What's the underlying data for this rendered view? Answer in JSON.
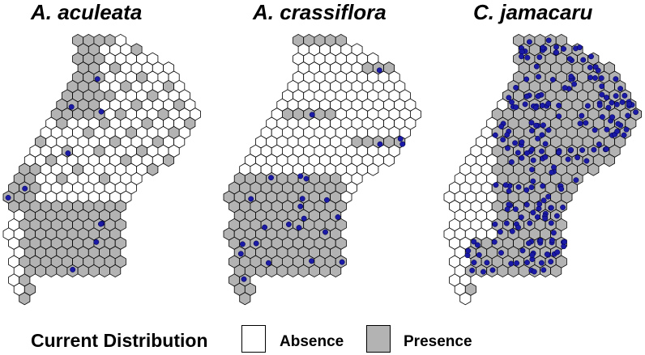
{
  "panels": [
    {
      "title": "A. aculeata"
    },
    {
      "title": "A. crassiflora"
    },
    {
      "title": "C. jamacaru"
    }
  ],
  "legend": {
    "title": "Current Distribution",
    "absence_label": "Absence",
    "presence_label": "Presence"
  },
  "colors": {
    "absence": "#ffffff",
    "presence": "#b3b3b3",
    "occurrence": "#1a1aa6",
    "outline": "#000000"
  }
}
